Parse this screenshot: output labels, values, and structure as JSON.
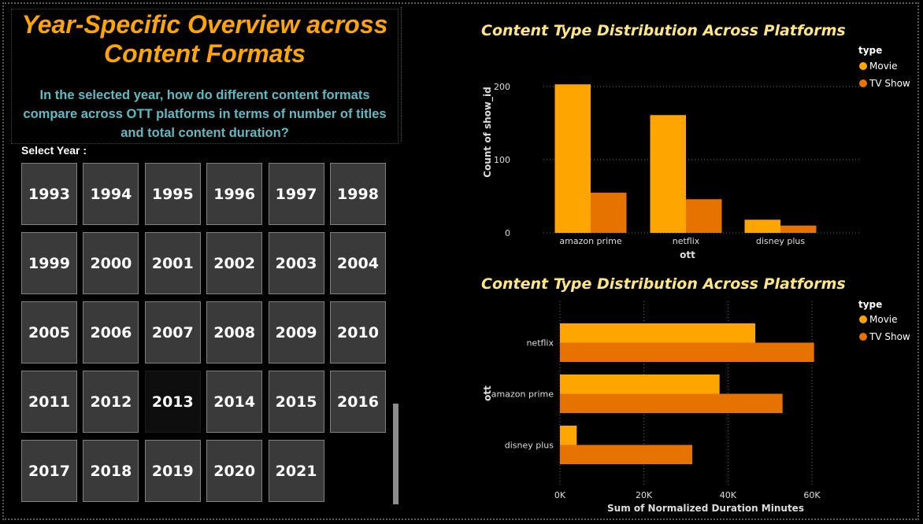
{
  "dashboard": {
    "title_line1": "Year-Specific Overview across",
    "title_line2": "Content Formats",
    "question_line1": "In the selected year, how do different content formats",
    "question_line2": "compare across OTT platforms in terms of number of titles",
    "question_line3": "and total content duration?",
    "select_label": "Select Year :",
    "selected_year": "2013",
    "years": [
      "1993",
      "1994",
      "1995",
      "1996",
      "1997",
      "1998",
      "1999",
      "2000",
      "2001",
      "2002",
      "2003",
      "2004",
      "2005",
      "2006",
      "2007",
      "2008",
      "2009",
      "2010",
      "2011",
      "2012",
      "2013",
      "2014",
      "2015",
      "2016",
      "2017",
      "2018",
      "2019",
      "2020",
      "2021"
    ]
  },
  "colors": {
    "movie": "#FFA500",
    "tv_show": "#E67300",
    "title": "#FFE680",
    "main_title": "#FFA500",
    "question": "#5FBBC3"
  },
  "chart_data": [
    {
      "type": "bar",
      "title": "Content Type Distribution Across Platforms",
      "xlabel": "ott",
      "ylabel": "Count of show_id",
      "categories": [
        "amazon prime",
        "netflix",
        "disney plus"
      ],
      "series": [
        {
          "name": "Movie",
          "values": [
            203,
            161,
            18
          ]
        },
        {
          "name": "TV Show",
          "values": [
            55,
            46,
            10
          ]
        }
      ],
      "ylim": [
        0,
        220
      ],
      "yticks": [
        "0",
        "100",
        "200"
      ],
      "ytick_values": [
        0,
        100,
        200
      ],
      "legend_title": "type",
      "legend_position": "top-right",
      "grid": true
    },
    {
      "type": "bar",
      "orientation": "horizontal",
      "title": "Content Type Distribution Across Platforms",
      "xlabel": "Sum of Normalized Duration Minutes",
      "ylabel": "ott",
      "categories": [
        "netflix",
        "amazon prime",
        "disney plus"
      ],
      "series": [
        {
          "name": "Movie",
          "values": [
            46500,
            38000,
            4000
          ]
        },
        {
          "name": "TV Show",
          "values": [
            60500,
            53000,
            31500
          ]
        }
      ],
      "xlim": [
        0,
        66000
      ],
      "xticks": [
        "0K",
        "20K",
        "40K",
        "60K"
      ],
      "xtick_values": [
        0,
        20000,
        40000,
        60000
      ],
      "legend_title": "type",
      "legend_position": "top-right",
      "grid": true
    }
  ]
}
